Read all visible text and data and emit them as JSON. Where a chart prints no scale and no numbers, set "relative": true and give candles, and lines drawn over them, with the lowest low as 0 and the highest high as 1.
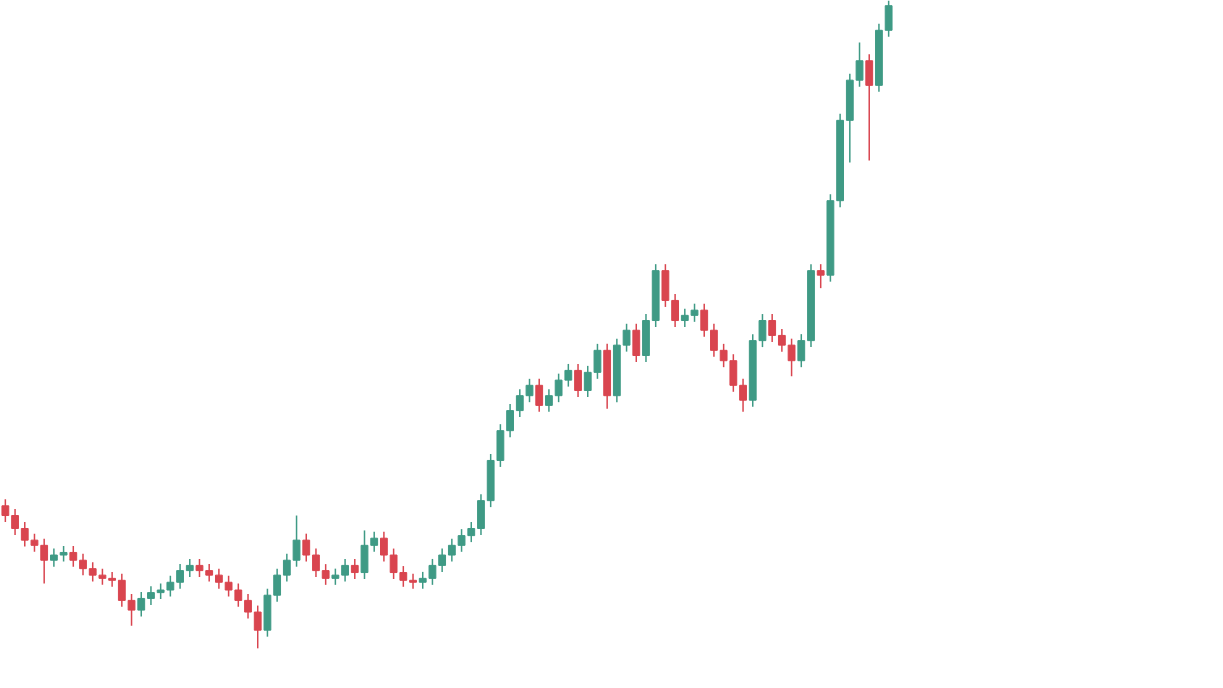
{
  "chart_data": {
    "type": "candlestick",
    "relative": true,
    "grid": false,
    "categories": [
      null,
      null,
      null,
      null,
      null,
      null,
      null,
      null,
      null,
      null,
      null,
      null,
      null,
      null,
      null,
      null,
      null,
      null,
      null,
      null,
      null,
      null,
      null,
      null,
      null,
      null,
      null,
      null,
      null,
      null,
      null,
      null,
      null,
      null,
      null,
      null,
      null,
      null,
      null,
      null,
      null,
      null,
      null,
      null,
      null,
      null,
      null,
      null,
      null,
      null,
      null,
      null,
      null,
      null,
      null,
      null,
      null,
      null,
      null,
      null,
      null,
      null,
      null,
      null,
      null,
      null,
      null,
      null,
      null,
      null,
      null,
      null,
      null,
      null,
      null,
      null,
      null,
      null,
      null,
      null,
      null,
      null,
      null,
      null,
      null,
      null,
      null,
      null,
      null,
      null,
      null,
      null
    ],
    "ohlc": [
      [
        0.22,
        0.23,
        0.195,
        0.205
      ],
      [
        0.205,
        0.215,
        0.175,
        0.185
      ],
      [
        0.185,
        0.195,
        0.157,
        0.167
      ],
      [
        0.167,
        0.177,
        0.149,
        0.159
      ],
      [
        0.159,
        0.169,
        0.1,
        0.136
      ],
      [
        0.136,
        0.154,
        0.126,
        0.144
      ],
      [
        0.144,
        0.158,
        0.134,
        0.148
      ],
      [
        0.148,
        0.158,
        0.126,
        0.136
      ],
      [
        0.136,
        0.146,
        0.113,
        0.123
      ],
      [
        0.123,
        0.133,
        0.103,
        0.113
      ],
      [
        0.113,
        0.123,
        0.098,
        0.108
      ],
      [
        0.108,
        0.118,
        0.095,
        0.105
      ],
      [
        0.105,
        0.115,
        0.064,
        0.074
      ],
      [
        0.074,
        0.084,
        0.035,
        0.059
      ],
      [
        0.059,
        0.087,
        0.049,
        0.077
      ],
      [
        0.077,
        0.096,
        0.067,
        0.086
      ],
      [
        0.086,
        0.1,
        0.076,
        0.09
      ],
      [
        0.09,
        0.112,
        0.08,
        0.102
      ],
      [
        0.102,
        0.13,
        0.092,
        0.12
      ],
      [
        0.12,
        0.138,
        0.11,
        0.128
      ],
      [
        0.128,
        0.138,
        0.11,
        0.12
      ],
      [
        0.12,
        0.13,
        0.103,
        0.113
      ],
      [
        0.113,
        0.123,
        0.092,
        0.102
      ],
      [
        0.102,
        0.112,
        0.08,
        0.09
      ],
      [
        0.09,
        0.1,
        0.064,
        0.074
      ],
      [
        0.074,
        0.084,
        0.046,
        0.056
      ],
      [
        0.056,
        0.066,
        0.0,
        0.028
      ],
      [
        0.028,
        0.092,
        0.018,
        0.082
      ],
      [
        0.082,
        0.123,
        0.072,
        0.113
      ],
      [
        0.113,
        0.146,
        0.103,
        0.136
      ],
      [
        0.136,
        0.205,
        0.126,
        0.167
      ],
      [
        0.167,
        0.177,
        0.134,
        0.144
      ],
      [
        0.144,
        0.154,
        0.11,
        0.12
      ],
      [
        0.12,
        0.13,
        0.098,
        0.108
      ],
      [
        0.108,
        0.123,
        0.098,
        0.113
      ],
      [
        0.113,
        0.138,
        0.103,
        0.128
      ],
      [
        0.128,
        0.138,
        0.107,
        0.117
      ],
      [
        0.117,
        0.182,
        0.107,
        0.159
      ],
      [
        0.159,
        0.18,
        0.149,
        0.17
      ],
      [
        0.17,
        0.18,
        0.134,
        0.144
      ],
      [
        0.144,
        0.154,
        0.107,
        0.117
      ],
      [
        0.117,
        0.127,
        0.095,
        0.105
      ],
      [
        0.105,
        0.115,
        0.092,
        0.102
      ],
      [
        0.102,
        0.118,
        0.092,
        0.108
      ],
      [
        0.108,
        0.138,
        0.098,
        0.128
      ],
      [
        0.128,
        0.154,
        0.118,
        0.144
      ],
      [
        0.144,
        0.169,
        0.134,
        0.159
      ],
      [
        0.159,
        0.184,
        0.149,
        0.174
      ],
      [
        0.174,
        0.195,
        0.164,
        0.185
      ],
      [
        0.185,
        0.238,
        0.175,
        0.228
      ],
      [
        0.228,
        0.3,
        0.218,
        0.29
      ],
      [
        0.29,
        0.346,
        0.28,
        0.336
      ],
      [
        0.336,
        0.377,
        0.326,
        0.367
      ],
      [
        0.367,
        0.4,
        0.357,
        0.39
      ],
      [
        0.39,
        0.416,
        0.38,
        0.406
      ],
      [
        0.406,
        0.416,
        0.365,
        0.375
      ],
      [
        0.375,
        0.4,
        0.365,
        0.39
      ],
      [
        0.39,
        0.424,
        0.38,
        0.414
      ],
      [
        0.414,
        0.439,
        0.404,
        0.429
      ],
      [
        0.429,
        0.439,
        0.388,
        0.398
      ],
      [
        0.398,
        0.436,
        0.388,
        0.426
      ],
      [
        0.426,
        0.47,
        0.416,
        0.46
      ],
      [
        0.46,
        0.47,
        0.37,
        0.39
      ],
      [
        0.39,
        0.478,
        0.38,
        0.468
      ],
      [
        0.468,
        0.501,
        0.458,
        0.491
      ],
      [
        0.491,
        0.501,
        0.442,
        0.452
      ],
      [
        0.452,
        0.516,
        0.442,
        0.506
      ],
      [
        0.506,
        0.593,
        0.496,
        0.583
      ],
      [
        0.583,
        0.593,
        0.527,
        0.537
      ],
      [
        0.537,
        0.547,
        0.496,
        0.506
      ],
      [
        0.506,
        0.524,
        0.496,
        0.514
      ],
      [
        0.514,
        0.532,
        0.504,
        0.522
      ],
      [
        0.522,
        0.532,
        0.481,
        0.491
      ],
      [
        0.491,
        0.501,
        0.45,
        0.46
      ],
      [
        0.46,
        0.47,
        0.434,
        0.444
      ],
      [
        0.444,
        0.454,
        0.396,
        0.406
      ],
      [
        0.406,
        0.416,
        0.365,
        0.383
      ],
      [
        0.383,
        0.485,
        0.373,
        0.475
      ],
      [
        0.475,
        0.516,
        0.465,
        0.506
      ],
      [
        0.506,
        0.516,
        0.473,
        0.483
      ],
      [
        0.483,
        0.493,
        0.458,
        0.468
      ],
      [
        0.468,
        0.478,
        0.42,
        0.444
      ],
      [
        0.444,
        0.485,
        0.434,
        0.475
      ],
      [
        0.475,
        0.593,
        0.465,
        0.583
      ],
      [
        0.583,
        0.593,
        0.556,
        0.576
      ],
      [
        0.576,
        0.701,
        0.566,
        0.691
      ],
      [
        0.691,
        0.825,
        0.681,
        0.815
      ],
      [
        0.815,
        0.887,
        0.75,
        0.877
      ],
      [
        0.877,
        0.935,
        0.867,
        0.907
      ],
      [
        0.907,
        0.917,
        0.753,
        0.869
      ],
      [
        0.869,
        0.964,
        0.859,
        0.954
      ],
      [
        0.954,
        1.0,
        0.944,
        0.992
      ]
    ],
    "colors": [
      "#d9454f",
      "#d9454f",
      "#d9454f",
      "#d9454f",
      "#d9454f",
      "#3f9a85",
      "#3f9a85",
      "#d9454f",
      "#d9454f",
      "#d9454f",
      "#d9454f",
      "#d9454f",
      "#d9454f",
      "#d9454f",
      "#3f9a85",
      "#3f9a85",
      "#3f9a85",
      "#3f9a85",
      "#3f9a85",
      "#3f9a85",
      "#d9454f",
      "#d9454f",
      "#d9454f",
      "#d9454f",
      "#d9454f",
      "#d9454f",
      "#d9454f",
      "#3f9a85",
      "#3f9a85",
      "#3f9a85",
      "#3f9a85",
      "#d9454f",
      "#d9454f",
      "#d9454f",
      "#3f9a85",
      "#3f9a85",
      "#d9454f",
      "#3f9a85",
      "#3f9a85",
      "#d9454f",
      "#d9454f",
      "#d9454f",
      "#d9454f",
      "#3f9a85",
      "#3f9a85",
      "#3f9a85",
      "#3f9a85",
      "#3f9a85",
      "#3f9a85",
      "#3f9a85",
      "#3f9a85",
      "#3f9a85",
      "#3f9a85",
      "#3f9a85",
      "#3f9a85",
      "#d9454f",
      "#3f9a85",
      "#3f9a85",
      "#3f9a85",
      "#d9454f",
      "#3f9a85",
      "#3f9a85",
      "#d9454f",
      "#3f9a85",
      "#3f9a85",
      "#d9454f",
      "#3f9a85",
      "#3f9a85",
      "#d9454f",
      "#d9454f",
      "#3f9a85",
      "#3f9a85",
      "#d9454f",
      "#d9454f",
      "#d9454f",
      "#d9454f",
      "#d9454f",
      "#3f9a85",
      "#3f9a85",
      "#d9454f",
      "#d9454f",
      "#d9454f",
      "#3f9a85",
      "#3f9a85",
      "#d9454f",
      "#3f9a85",
      "#3f9a85",
      "#3f9a85",
      "#3f9a85",
      "#d9454f",
      "#3f9a85",
      "#3f9a85"
    ]
  }
}
